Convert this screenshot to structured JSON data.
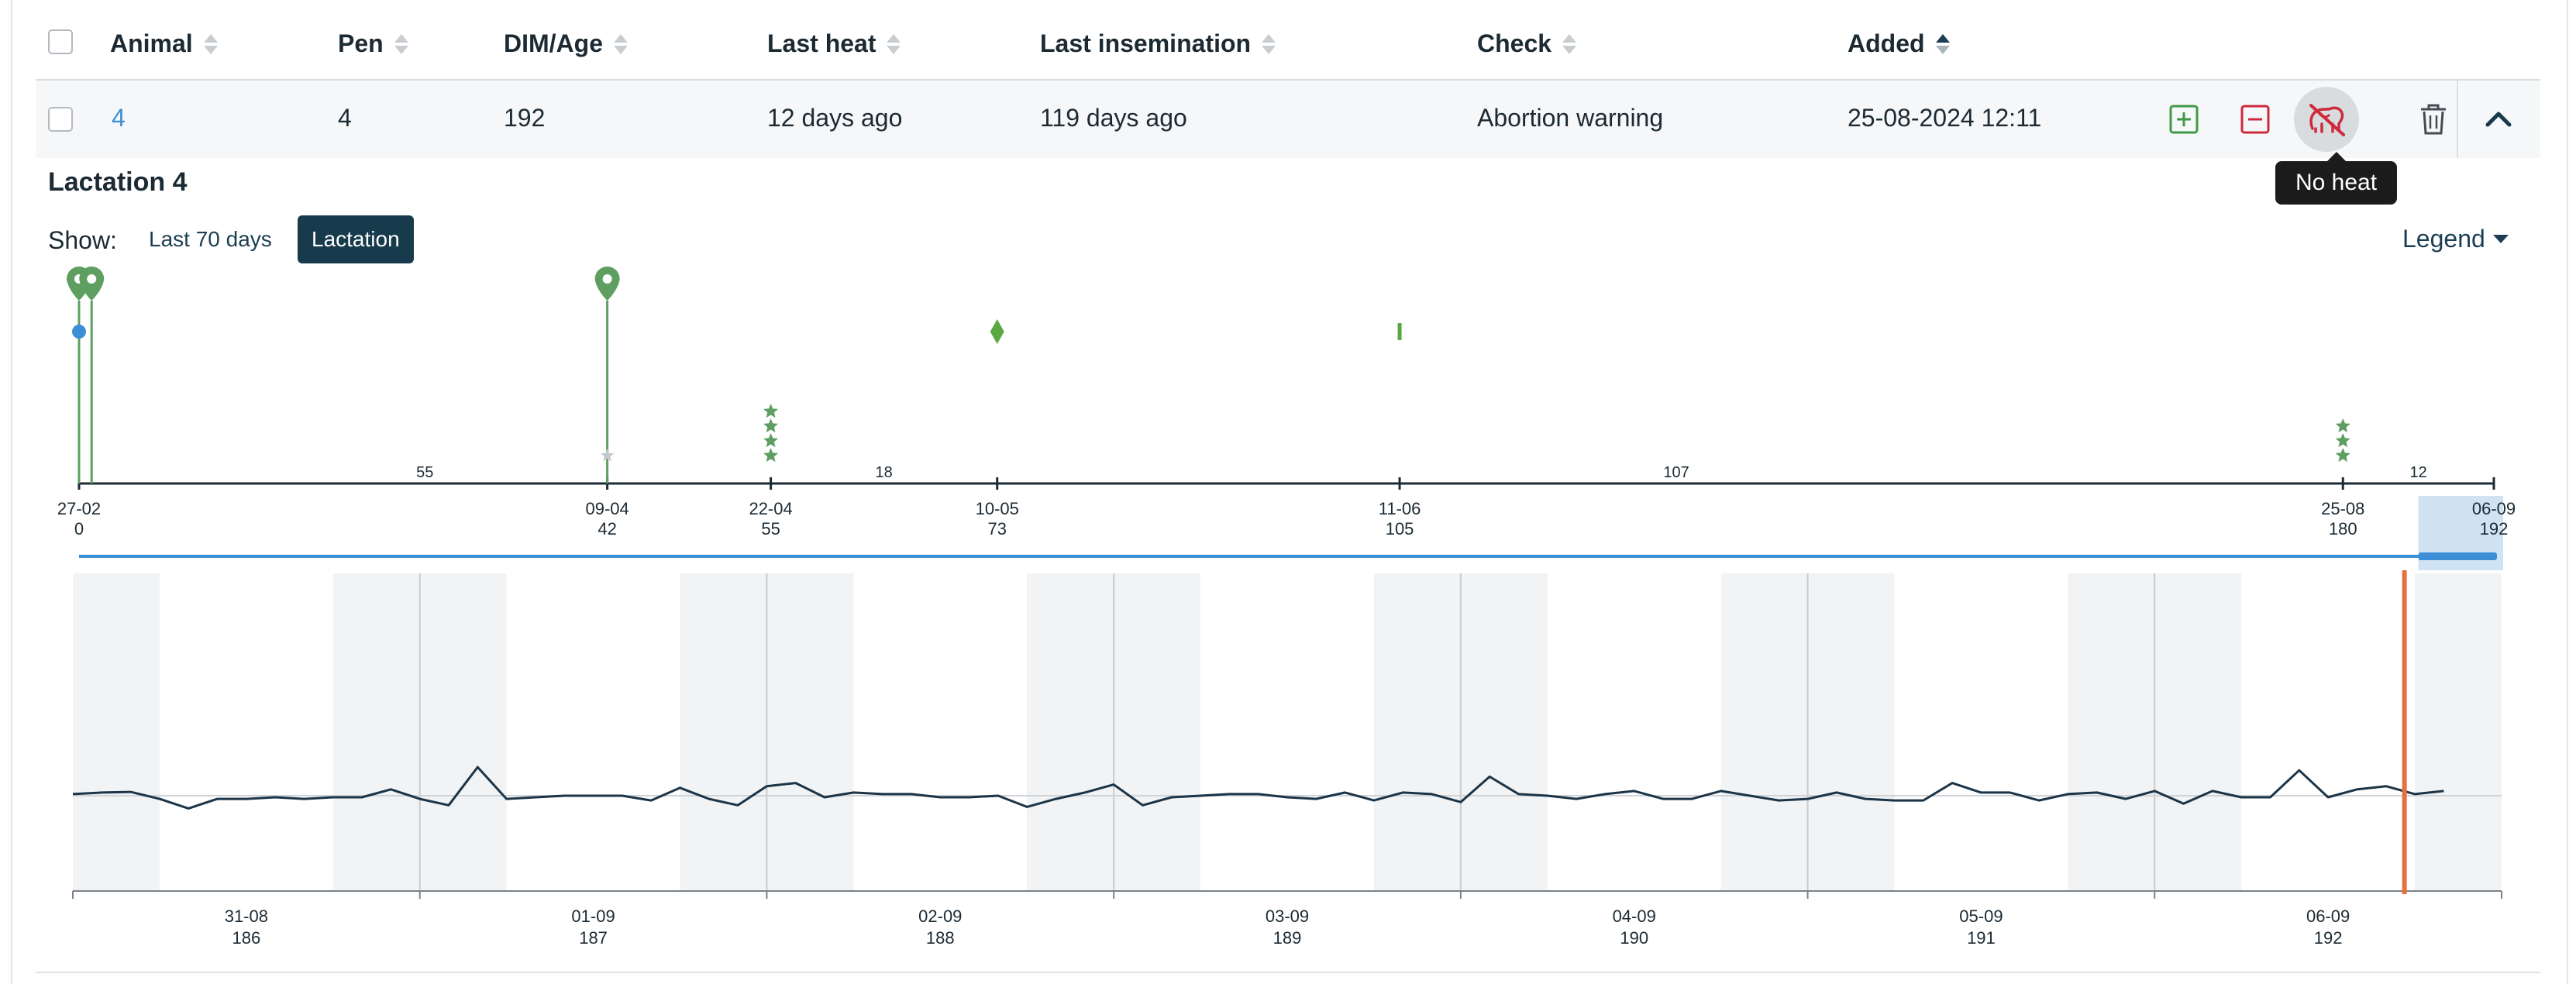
{
  "table": {
    "headers": {
      "animal": "Animal",
      "pen": "Pen",
      "dim_age": "DIM/Age",
      "last_heat": "Last heat",
      "last_insemination": "Last insemination",
      "check": "Check",
      "added": "Added"
    },
    "row": {
      "animal": "4",
      "pen": "4",
      "dim_age": "192",
      "last_heat": "12 days ago",
      "last_insemination": "119 days ago",
      "check": "Abortion warning",
      "added": "25-08-2024 12:11"
    },
    "actions": {
      "add_icon": "plus-square-icon",
      "remove_icon": "minus-square-icon",
      "no_heat_icon": "no-heat-icon",
      "delete_icon": "trash-icon",
      "collapse_icon": "chevron-up-icon"
    },
    "tooltip": "No heat"
  },
  "detail": {
    "title": "Lactation 4",
    "show_label": "Show:",
    "show_options": [
      "Last 70 days",
      "Lactation"
    ],
    "selected_option": "Lactation",
    "legend_label": "Legend"
  },
  "timeline": {
    "ticks": [
      {
        "date": "27-02",
        "dim": "0",
        "x": 0
      },
      {
        "date": "09-04",
        "dim": "42",
        "x": 42
      },
      {
        "date": "22-04",
        "dim": "55",
        "x": 55
      },
      {
        "date": "10-05",
        "dim": "73",
        "x": 73
      },
      {
        "date": "11-06",
        "dim": "105",
        "x": 105
      },
      {
        "date": "25-08",
        "dim": "180",
        "x": 180
      },
      {
        "date": "06-09",
        "dim": "192",
        "x": 192
      }
    ],
    "intervals": [
      {
        "label": "55",
        "x": 27.5
      },
      {
        "label": "18",
        "x": 64
      },
      {
        "label": "107",
        "x": 127
      },
      {
        "label": "12",
        "x": 186
      }
    ],
    "events": [
      {
        "type": "heat-pin",
        "x": 0
      },
      {
        "type": "heat-pin",
        "x": 1
      },
      {
        "type": "heat-pin",
        "x": 42
      },
      {
        "type": "insemination-dot",
        "x": 0
      },
      {
        "type": "stars",
        "x": 55,
        "count": 4
      },
      {
        "type": "stars",
        "x": 180,
        "count": 3
      },
      {
        "type": "diamond",
        "x": 73
      },
      {
        "type": "bar",
        "x": 105
      },
      {
        "type": "grey-star",
        "x": 42
      }
    ],
    "range": [
      0,
      192
    ],
    "selected_window": [
      186,
      192
    ],
    "colors": {
      "pin": "#5e9f61",
      "insemination": "#3c8fd6",
      "stars": "#5e9f61",
      "diamond": "#5aa841",
      "axis": "#1b2a33",
      "window": "#cfe3f3",
      "scroll": "#3c8fd6"
    }
  },
  "chart_data": {
    "type": "line",
    "title": "",
    "xlabel": "",
    "ylabel": "",
    "x_ticks": [
      {
        "date": "31-08",
        "dim": "186"
      },
      {
        "date": "01-09",
        "dim": "187"
      },
      {
        "date": "02-09",
        "dim": "188"
      },
      {
        "date": "03-09",
        "dim": "189"
      },
      {
        "date": "04-09",
        "dim": "190"
      },
      {
        "date": "05-09",
        "dim": "191"
      },
      {
        "date": "06-09",
        "dim": "192"
      }
    ],
    "xlim": [
      185.5,
      192.5
    ],
    "ylim": [
      0,
      10
    ],
    "baseline": 3.0,
    "current_marker_x": 192.22,
    "current_marker_color": "#e8703f",
    "line_color": "#1b3447",
    "series": [
      {
        "values": [
          3.05,
          3.1,
          3.12,
          2.9,
          2.6,
          2.9,
          2.9,
          2.95,
          2.9,
          2.95,
          2.95,
          3.2,
          2.9,
          2.7,
          3.9,
          2.9,
          2.95,
          3.0,
          3.0,
          3.0,
          2.85,
          3.25,
          2.9,
          2.7,
          3.3,
          3.4,
          2.95,
          3.1,
          3.05,
          3.05,
          2.95,
          2.95,
          3.0,
          2.65,
          2.9,
          3.1,
          3.35,
          2.7,
          2.95,
          3.0,
          3.05,
          3.05,
          2.95,
          2.9,
          3.1,
          2.85,
          3.1,
          3.05,
          2.8,
          3.6,
          3.05,
          3.0,
          2.9,
          3.05,
          3.15,
          2.9,
          2.9,
          3.15,
          3.0,
          2.85,
          2.9,
          3.1,
          2.9,
          2.85,
          2.85,
          3.4,
          3.1,
          3.1,
          2.85,
          3.05,
          3.1,
          2.9,
          3.15,
          2.75,
          3.15,
          2.95,
          2.95,
          3.8,
          2.95,
          3.2,
          3.3,
          3.05,
          3.15
        ]
      }
    ]
  }
}
